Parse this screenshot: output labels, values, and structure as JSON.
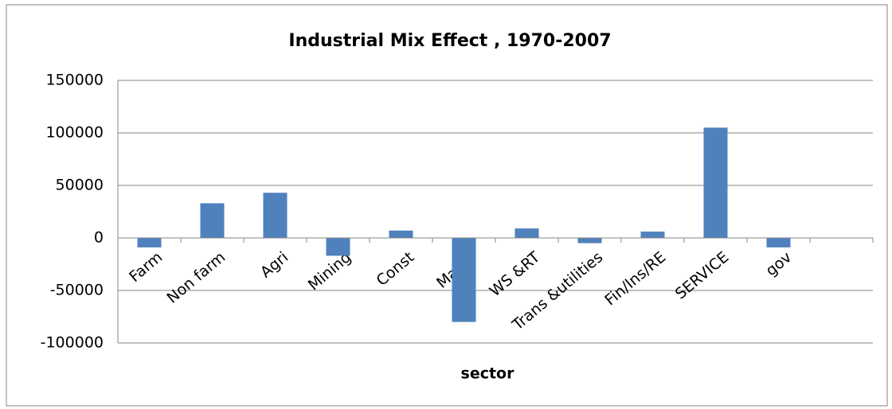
{
  "chart_data": {
    "type": "bar",
    "title": "Industrial Mix Effect , 1970-2007",
    "x_label": "sector",
    "categories": [
      "Farm",
      "Non farm",
      "Agri",
      "Mining",
      "Const",
      "Manuf",
      "WS &RT",
      "Trans &utilities",
      "Fin/Ins/RE",
      "SERVICE",
      "gov",
      null
    ],
    "values": [
      -9000,
      33000,
      43000,
      -17000,
      7000,
      -80000,
      9000,
      -5000,
      6000,
      105000,
      -9000,
      null
    ],
    "color": "#4f81bd",
    "ylim": [
      -100000,
      150000
    ],
    "yticks": [
      -100000,
      -50000,
      0,
      50000,
      100000,
      150000
    ],
    "grid": true
  }
}
